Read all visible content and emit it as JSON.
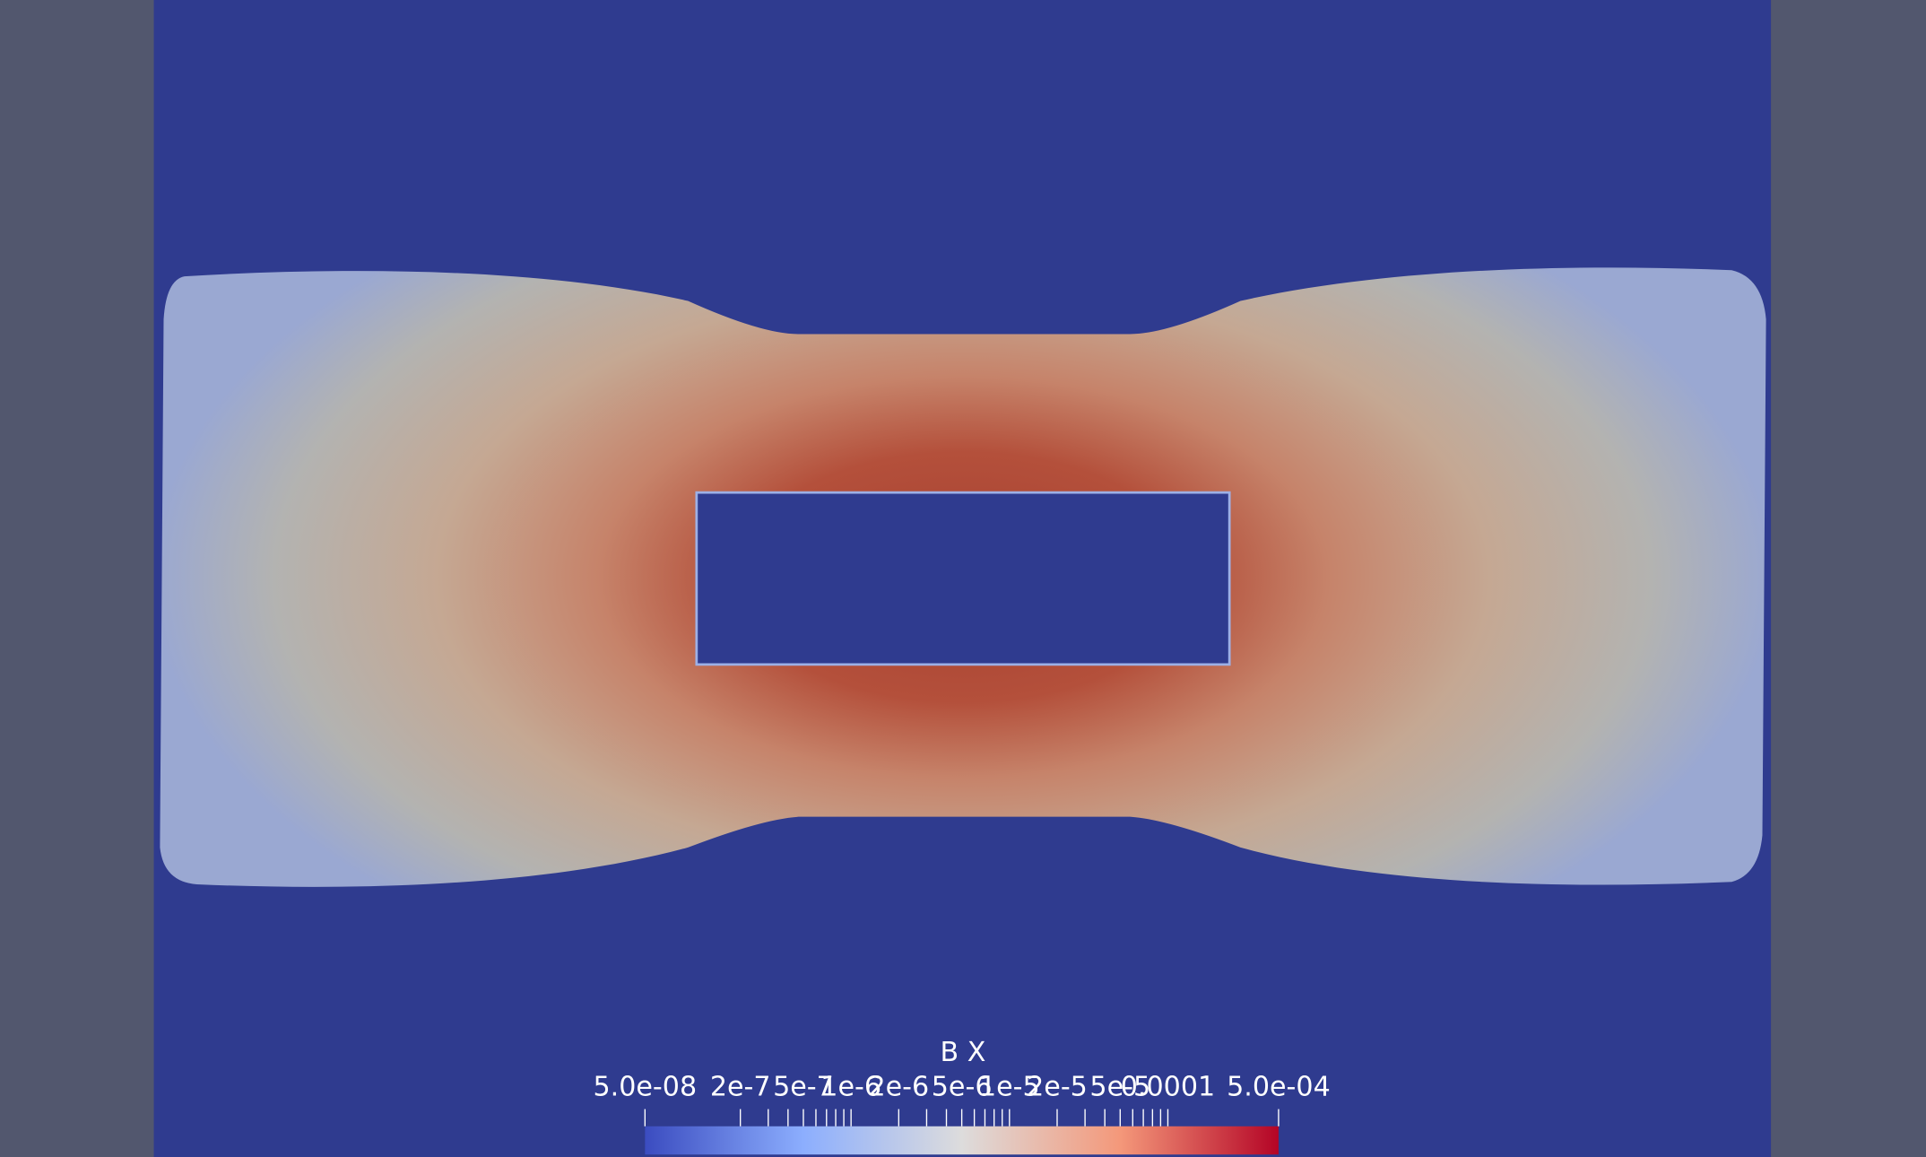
{
  "colorbar": {
    "title": "B X",
    "log_scale": true,
    "range": [
      {
        "value": 5e-08,
        "label": "5.0e-08"
      },
      {
        "value": 0.0005,
        "label": "5.0e-04"
      }
    ],
    "ticks": [
      {
        "value": 2e-07,
        "label": "2e-7"
      },
      {
        "value": 5e-07,
        "label": "5e-7"
      },
      {
        "value": 1e-06,
        "label": "1e-6"
      },
      {
        "value": 2e-06,
        "label": "2e-6"
      },
      {
        "value": 5e-06,
        "label": "5e-6"
      },
      {
        "value": 1e-05,
        "label": "1e-5"
      },
      {
        "value": 2e-05,
        "label": "2e-5"
      },
      {
        "value": 5e-05,
        "label": "5e-5"
      },
      {
        "value": 0.0001,
        "label": "0.0001"
      }
    ],
    "minor_ticks": [
      3e-07,
      4e-07,
      6e-07,
      7e-07,
      8e-07,
      9e-07,
      3e-06,
      4e-06,
      6e-06,
      7e-06,
      8e-06,
      9e-06,
      3e-05,
      4e-05,
      6e-05,
      7e-05,
      8e-05,
      9e-05
    ],
    "colors": [
      "#3b4cc0",
      "#8caefe",
      "#dddcdc",
      "#f4987a",
      "#b40426"
    ]
  }
}
